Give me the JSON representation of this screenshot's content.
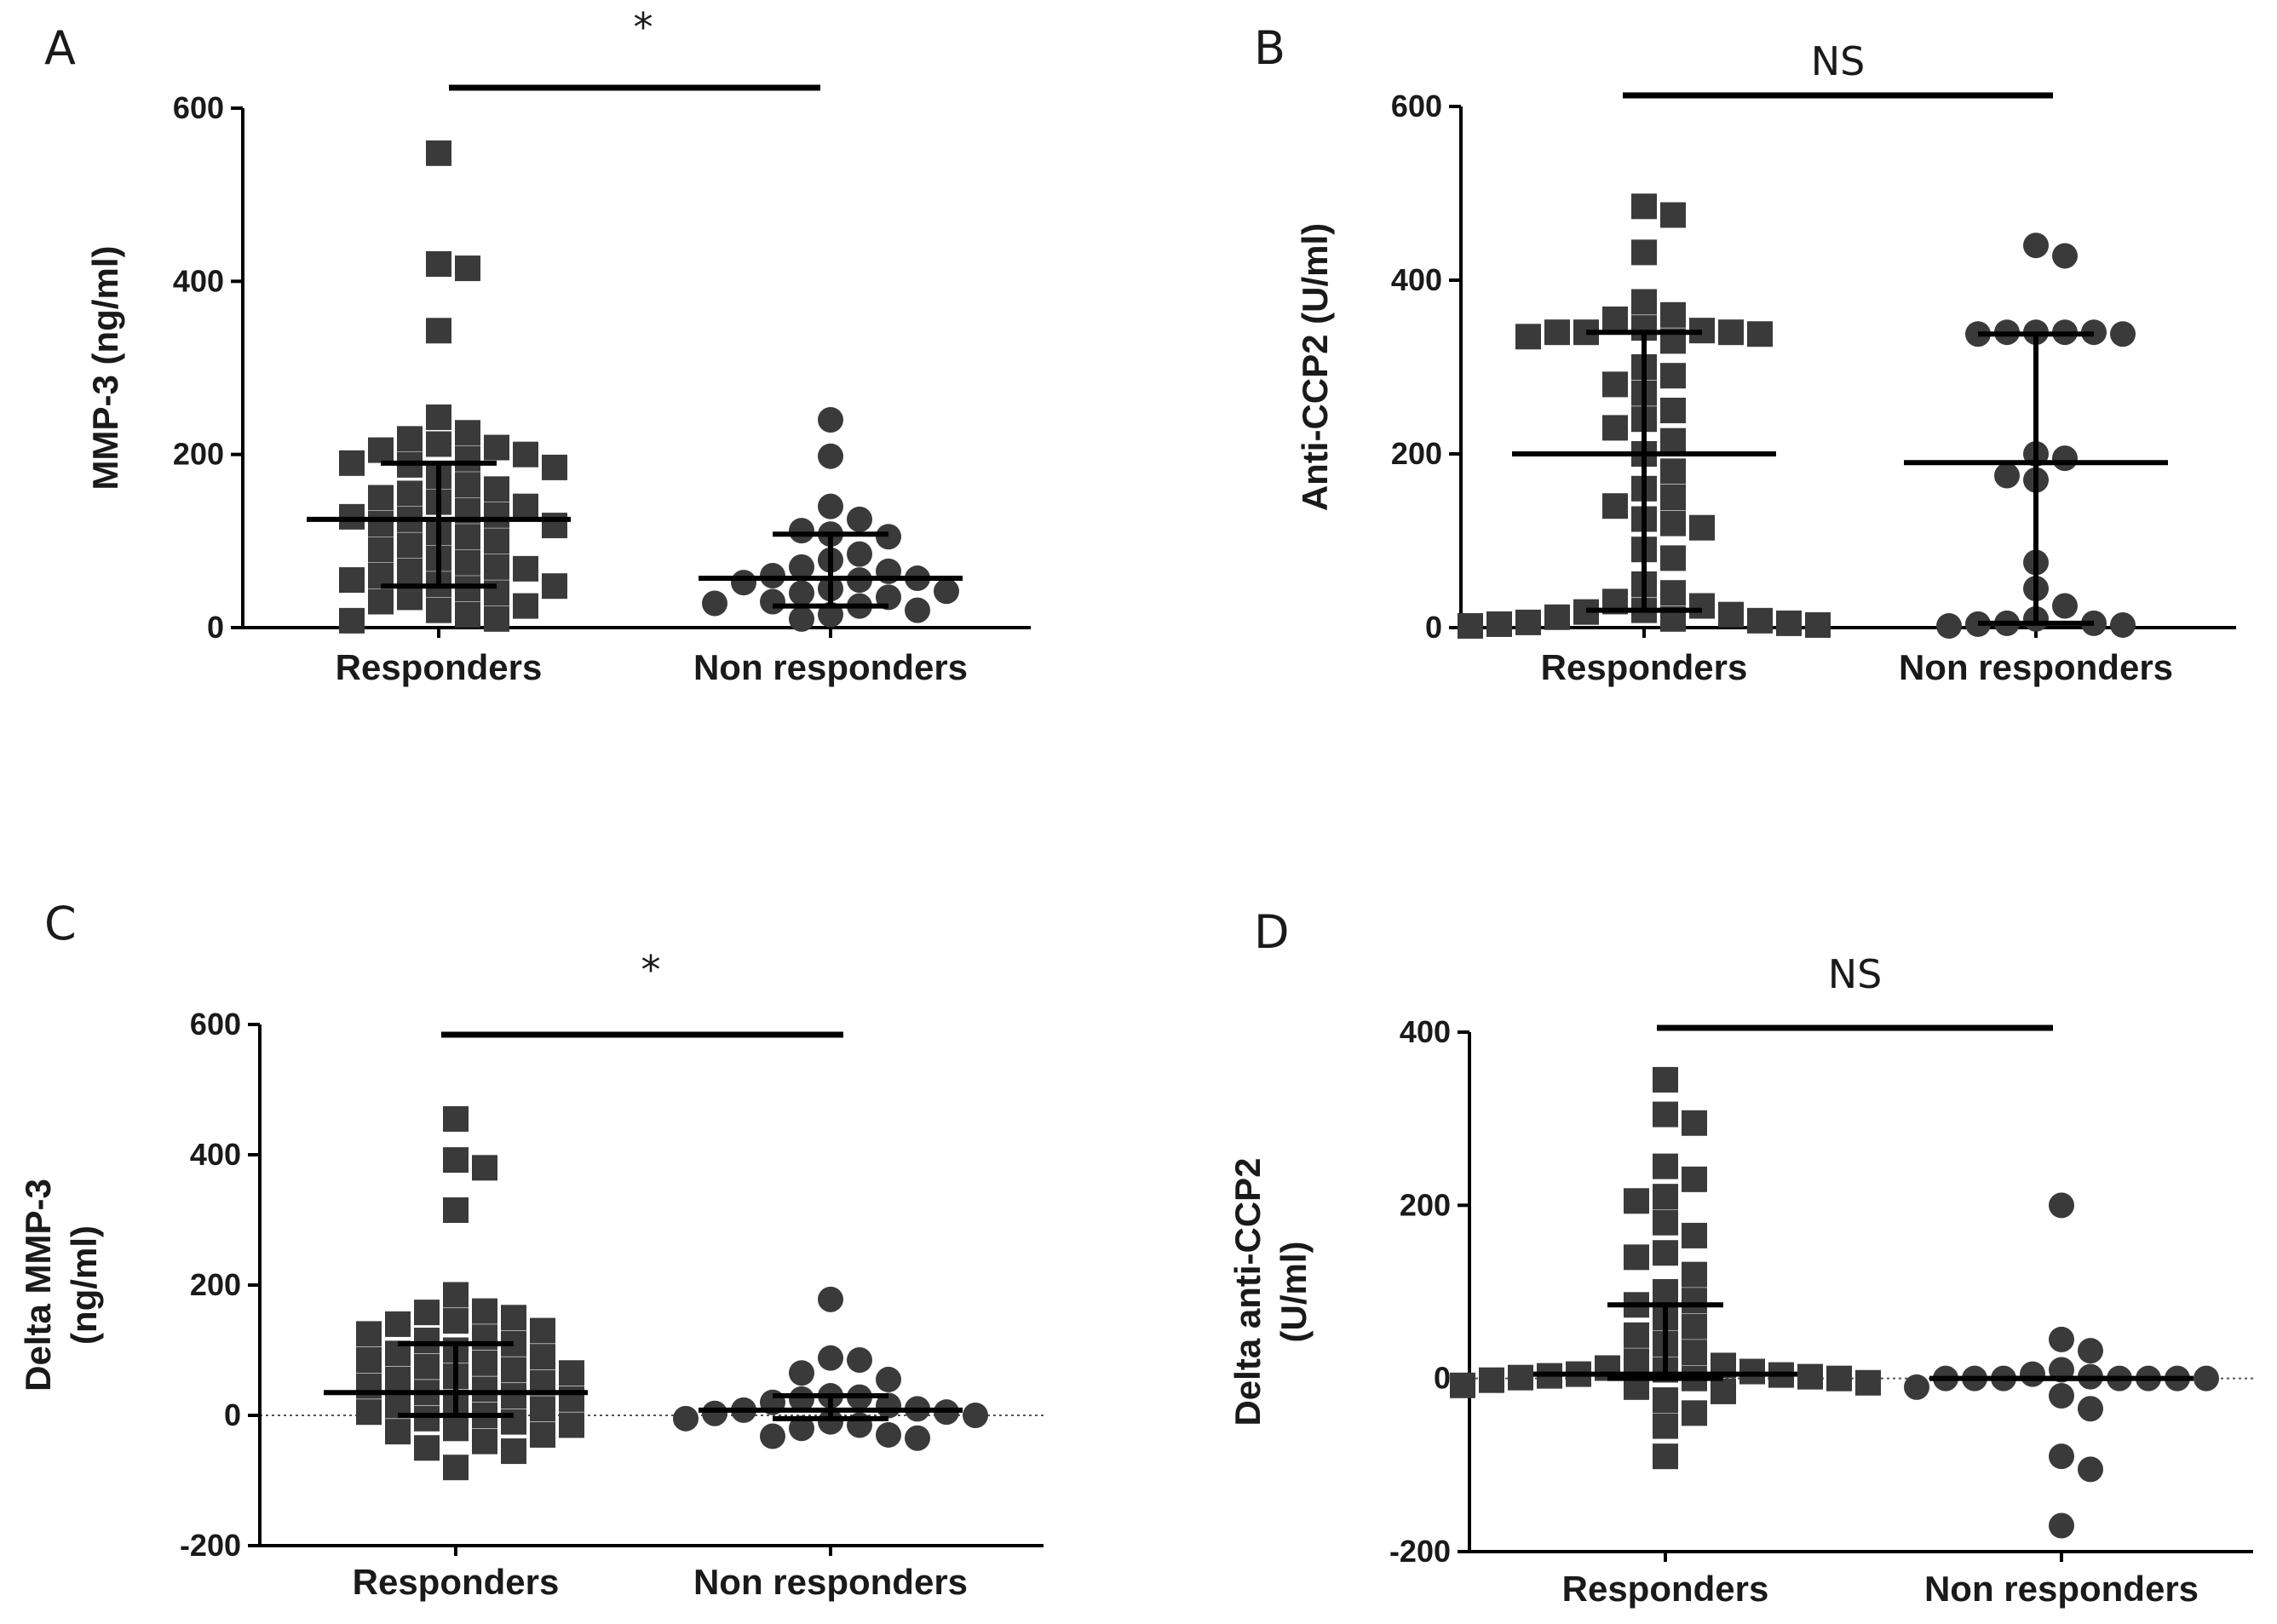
{
  "figure": {
    "panels": [
      "A",
      "B",
      "C",
      "D"
    ]
  },
  "chart_data": [
    {
      "type": "scatter",
      "panel": "A",
      "ylabel": [
        "MMP-3 (ng/ml)"
      ],
      "categories": [
        "Responders",
        "Non responders"
      ],
      "ylim": [
        0,
        600
      ],
      "yticks": [
        "0",
        "200",
        "400",
        "600"
      ],
      "significance": "*",
      "show_zero_line": false,
      "series": [
        {
          "category": "Responders",
          "marker": "square",
          "median": 125,
          "iqr": [
            48,
            190
          ],
          "values": [
            548,
            420,
            415,
            343,
            243,
            225,
            218,
            212,
            208,
            205,
            200,
            195,
            190,
            188,
            185,
            175,
            165,
            160,
            155,
            150,
            145,
            140,
            135,
            130,
            128,
            125,
            120,
            118,
            110,
            105,
            100,
            95,
            90,
            80,
            75,
            70,
            68,
            65,
            60,
            55,
            50,
            48,
            45,
            40,
            35,
            30,
            25,
            20,
            15,
            10,
            8
          ]
        },
        {
          "category": "Non responders",
          "marker": "circle",
          "median": 57,
          "iqr": [
            25,
            108
          ],
          "values": [
            240,
            198,
            140,
            125,
            112,
            108,
            105,
            85,
            78,
            70,
            65,
            60,
            57,
            55,
            52,
            45,
            42,
            40,
            35,
            30,
            28,
            25,
            20,
            15,
            10
          ]
        }
      ]
    },
    {
      "type": "scatter",
      "panel": "B",
      "ylabel": [
        "Anti-CCP2 (U/ml)"
      ],
      "categories": [
        "Responders",
        "Non responders"
      ],
      "ylim": [
        0,
        600
      ],
      "yticks": [
        "0",
        "200",
        "400",
        "600"
      ],
      "significance": "NS",
      "show_zero_line": false,
      "series": [
        {
          "category": "Responders",
          "marker": "square",
          "median": 200,
          "iqr": [
            20,
            340
          ],
          "values": [
            485,
            475,
            432,
            375,
            360,
            355,
            345,
            342,
            340,
            340,
            340,
            338,
            335,
            330,
            300,
            290,
            280,
            270,
            250,
            240,
            230,
            215,
            200,
            180,
            160,
            150,
            140,
            125,
            120,
            115,
            90,
            80,
            50,
            40,
            30,
            25,
            20,
            18,
            15,
            12,
            10,
            8,
            6,
            5,
            4,
            3,
            2
          ]
        },
        {
          "category": "Non responders",
          "marker": "circle",
          "median": 190,
          "iqr": [
            5,
            338
          ],
          "values": [
            440,
            428,
            340,
            340,
            340,
            340,
            338,
            338,
            200,
            195,
            175,
            170,
            75,
            45,
            25,
            10,
            5,
            5,
            4,
            3,
            2
          ]
        }
      ]
    },
    {
      "type": "scatter",
      "panel": "C",
      "ylabel": [
        "Delta MMP-3",
        "(ng/ml)"
      ],
      "categories": [
        "Responders",
        "Non responders"
      ],
      "ylim": [
        -200,
        600
      ],
      "yticks": [
        "-200",
        "0",
        "200",
        "400",
        "600"
      ],
      "significance": "*",
      "show_zero_line": true,
      "series": [
        {
          "category": "Responders",
          "marker": "square",
          "median": 35,
          "iqr": [
            0,
            110
          ],
          "values": [
            455,
            392,
            380,
            315,
            185,
            160,
            158,
            150,
            145,
            140,
            130,
            125,
            120,
            115,
            110,
            100,
            95,
            90,
            85,
            80,
            75,
            70,
            65,
            60,
            55,
            50,
            45,
            40,
            35,
            30,
            25,
            20,
            15,
            10,
            5,
            0,
            -5,
            -10,
            -15,
            -20,
            -25,
            -30,
            -40,
            -50,
            -55,
            -80
          ]
        },
        {
          "category": "Non responders",
          "marker": "circle",
          "median": 8,
          "iqr": [
            -5,
            30
          ],
          "values": [
            178,
            88,
            85,
            65,
            55,
            30,
            28,
            25,
            20,
            15,
            10,
            8,
            5,
            3,
            0,
            -5,
            -10,
            -15,
            -20,
            -30,
            -32,
            -35
          ]
        }
      ]
    },
    {
      "type": "scatter",
      "panel": "D",
      "ylabel": [
        "Delta anti-CCP2",
        "(U/ml)"
      ],
      "categories": [
        "Responders",
        "Non responders"
      ],
      "ylim": [
        -200,
        400
      ],
      "yticks": [
        "-200",
        "0",
        "200",
        "400"
      ],
      "significance": "NS",
      "show_zero_line": true,
      "series": [
        {
          "category": "Responders",
          "marker": "square",
          "median": 5,
          "iqr": [
            0,
            85
          ],
          "values": [
            345,
            305,
            295,
            245,
            230,
            210,
            205,
            180,
            165,
            145,
            140,
            120,
            100,
            90,
            85,
            70,
            60,
            50,
            40,
            30,
            20,
            15,
            12,
            10,
            8,
            5,
            4,
            3,
            2,
            1,
            0,
            0,
            -2,
            -5,
            -8,
            -10,
            -15,
            -25,
            -40,
            -55,
            -90
          ]
        },
        {
          "category": "Non responders",
          "marker": "circle",
          "median": 0,
          "iqr": [
            0,
            0
          ],
          "values": [
            200,
            45,
            32,
            10,
            5,
            2,
            0,
            0,
            0,
            0,
            0,
            0,
            0,
            -10,
            -20,
            -35,
            -90,
            -105,
            -170
          ]
        }
      ]
    }
  ]
}
